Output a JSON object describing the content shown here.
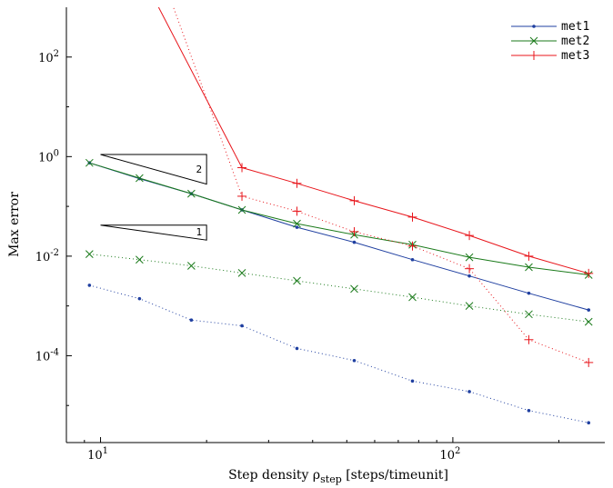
{
  "chart_data": {
    "type": "line",
    "xlabel": "Step density ρ",
    "xlabel_sub": "step",
    "xlabel_suffix": " [steps/timeunit]",
    "ylabel": "Max error",
    "x_scale": "log",
    "y_scale": "log",
    "xlim": [
      8,
      270
    ],
    "ylim": [
      1.8e-06,
      1000
    ],
    "x_ticks": [
      {
        "value": 10,
        "base": "10",
        "exp": "1"
      },
      {
        "value": 100,
        "base": "10",
        "exp": "2"
      }
    ],
    "y_ticks": [
      {
        "value": 0.0001,
        "base": "10",
        "exp": "-4"
      },
      {
        "value": 0.01,
        "base": "10",
        "exp": "-2"
      },
      {
        "value": 1,
        "base": "10",
        "exp": "0"
      },
      {
        "value": 100,
        "base": "10",
        "exp": "2"
      }
    ],
    "grid": false,
    "legend_position": "top-right",
    "x": [
      9.3,
      12.9,
      18.1,
      25.2,
      36.1,
      52.5,
      76.8,
      111.4,
      164.3,
      242.9
    ],
    "series": [
      {
        "name": "met1",
        "color": "#1f3fa0",
        "marker": "dot",
        "style": "solid",
        "values": [
          0.75,
          0.36,
          0.18,
          0.085,
          0.038,
          0.019,
          0.0085,
          0.004,
          0.0018,
          0.00083
        ]
      },
      {
        "name": "met2",
        "color": "#1a7a1a",
        "marker": "x",
        "style": "solid",
        "values": [
          0.75,
          0.37,
          0.18,
          0.085,
          0.045,
          0.027,
          0.017,
          0.0095,
          0.006,
          0.0042
        ]
      },
      {
        "name": "met3",
        "color": "#e8151b",
        "marker": "plus",
        "style": "solid",
        "values": [
          null,
          null,
          null,
          0.6,
          0.29,
          0.13,
          0.061,
          0.026,
          0.01,
          0.0045
        ]
      },
      {
        "name": "",
        "color": "#1f3fa0",
        "marker": "dot",
        "style": "dotted",
        "values": [
          0.0026,
          0.0014,
          0.00052,
          0.0004,
          0.00014,
          8e-05,
          3.1e-05,
          1.9e-05,
          7.9e-06,
          4.5e-06
        ]
      },
      {
        "name": "",
        "color": "#1a7a1a",
        "marker": "x",
        "style": "dotted",
        "values": [
          0.011,
          0.0085,
          0.0064,
          0.0046,
          0.0032,
          0.0022,
          0.0015,
          0.001,
          0.00068,
          0.00048
        ]
      },
      {
        "name": "",
        "color": "#e8151b",
        "marker": "plus",
        "style": "dotted",
        "values": [
          null,
          null,
          null,
          0.16,
          0.08,
          0.031,
          0.016,
          0.0056,
          0.00021,
          7.3e-05
        ]
      }
    ],
    "offscreen_lines": [
      {
        "color": "#e8151b",
        "style": "solid",
        "from": [
          13.2,
          4000
        ],
        "to": [
          25.2,
          0.6
        ]
      },
      {
        "color": "#e8151b",
        "style": "dotted",
        "from": [
          15.0,
          4000
        ],
        "to": [
          25.2,
          0.16
        ]
      }
    ],
    "slope_triangles": [
      {
        "label": "2",
        "x0": 10,
        "x1": 20,
        "y0": 1.1,
        "y1": 0.28
      },
      {
        "label": "1",
        "x0": 10,
        "x1": 20,
        "y0": 0.042,
        "y1": 0.021
      }
    ]
  }
}
